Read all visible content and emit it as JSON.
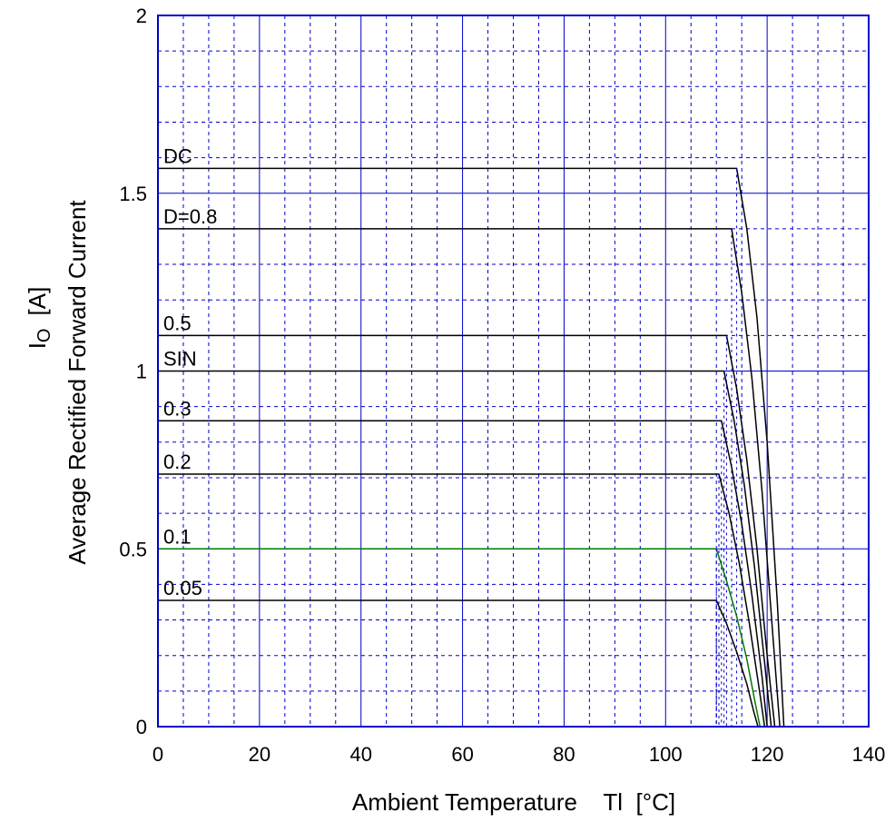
{
  "chart_data": {
    "type": "line",
    "xlabel": "Ambient Temperature    Tl  [°C]",
    "ylabel_symbol": "I",
    "ylabel_subscript": "O",
    "ylabel_unit": "[A]",
    "ylabel_description": "Average Rectified Forward Current",
    "xlim": [
      0,
      140
    ],
    "ylim": [
      0,
      2
    ],
    "x_ticks": [
      0,
      20,
      40,
      60,
      80,
      100,
      120,
      140
    ],
    "y_ticks": [
      0,
      0.5,
      1,
      1.5,
      2
    ],
    "x_tick_labels": [
      "0",
      "20",
      "40",
      "60",
      "80",
      100,
      "120",
      "140"
    ],
    "y_tick_labels": [
      "0",
      "0.5",
      "1",
      "1.5",
      "2"
    ],
    "grid": true,
    "colors": {
      "frame": "#0000cc",
      "major_grid": "#0000cc",
      "minor_grid": "#0000cc",
      "curve": "#000000",
      "highlight_curve": "#007a00"
    },
    "series": [
      {
        "name": "DC",
        "x": [
          0,
          114,
          116,
          118,
          120,
          122,
          123.3
        ],
        "y": [
          1.57,
          1.57,
          1.4,
          1.15,
          0.8,
          0.35,
          0
        ]
      },
      {
        "name": "D=0.8",
        "x": [
          0,
          113,
          115,
          117,
          119,
          121,
          122.5
        ],
        "y": [
          1.4,
          1.4,
          1.22,
          0.98,
          0.66,
          0.28,
          0
        ]
      },
      {
        "name": "0.5",
        "x": [
          0,
          112,
          114,
          116,
          118,
          120,
          121.5
        ],
        "y": [
          1.1,
          1.1,
          0.95,
          0.75,
          0.5,
          0.2,
          0
        ]
      },
      {
        "name": "SIN",
        "x": [
          0,
          111.5,
          113.5,
          115.5,
          117.5,
          119.5,
          120.8
        ],
        "y": [
          1.0,
          1.0,
          0.86,
          0.68,
          0.45,
          0.18,
          0
        ]
      },
      {
        "name": "0.3",
        "x": [
          0,
          111,
          113,
          115,
          117,
          119,
          120
        ],
        "y": [
          0.86,
          0.86,
          0.73,
          0.57,
          0.37,
          0.14,
          0
        ]
      },
      {
        "name": "0.2",
        "x": [
          0,
          110.5,
          112.5,
          114.5,
          116.5,
          118.5,
          119.5
        ],
        "y": [
          0.71,
          0.71,
          0.6,
          0.46,
          0.29,
          0.1,
          0
        ]
      },
      {
        "name": "0.1",
        "x": [
          0,
          110,
          112,
          114,
          116,
          117.6,
          118.6
        ],
        "y": [
          0.5,
          0.5,
          0.41,
          0.31,
          0.19,
          0.07,
          0
        ],
        "highlight": true
      },
      {
        "name": "0.05",
        "x": [
          0,
          110,
          112,
          114,
          116,
          117.4,
          118.2
        ],
        "y": [
          0.355,
          0.355,
          0.29,
          0.21,
          0.12,
          0.04,
          0
        ]
      }
    ]
  }
}
